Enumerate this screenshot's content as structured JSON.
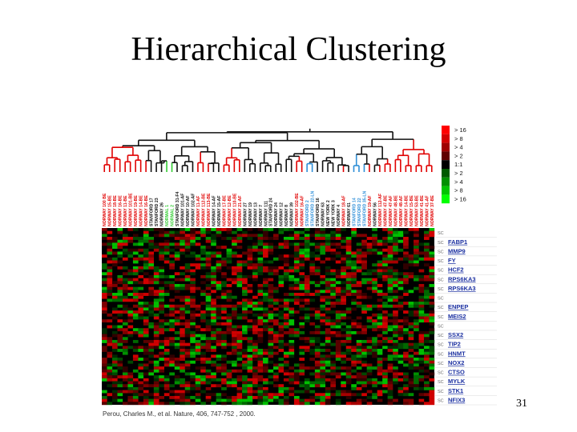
{
  "slide": {
    "title": "Hierarchical Clustering",
    "slide_number": "31",
    "citation": "Perou, Charles M., et al. Nature, 406, 747-752 , 2000."
  },
  "figure": {
    "samples": [
      {
        "label": "NORWAY 100 BE",
        "group": "red"
      },
      {
        "label": "NORWAY 15-BE",
        "group": "red"
      },
      {
        "label": "NORWAY 18-BE",
        "group": "red"
      },
      {
        "label": "NORWAY 16-BE",
        "group": "red"
      },
      {
        "label": "NORWAY 11-BE",
        "group": "red"
      },
      {
        "label": "NORWAY 101-BE",
        "group": "red"
      },
      {
        "label": "NORWAY 19-BE",
        "group": "red"
      },
      {
        "label": "NORWAY 14-BE",
        "group": "red"
      },
      {
        "label": "NORWAY 16-BE",
        "group": "red"
      },
      {
        "label": "STANFORD 17",
        "group": "black"
      },
      {
        "label": "STANFORD 23",
        "group": "black"
      },
      {
        "label": "NORWAY 26",
        "group": "black"
      },
      {
        "label": "NORMAL 1",
        "group": "green"
      },
      {
        "label": "NORMAL 2",
        "group": "green"
      },
      {
        "label": "STANFORD 31-F4",
        "group": "black"
      },
      {
        "label": "NORWAY 101-AF",
        "group": "black"
      },
      {
        "label": "NORWAY 10-AF",
        "group": "black"
      },
      {
        "label": "NORWAY 102-AF",
        "group": "black"
      },
      {
        "label": "NORWAY 11-AF",
        "group": "red"
      },
      {
        "label": "NORWAY 112-BE",
        "group": "red"
      },
      {
        "label": "NORWAY 113-BE",
        "group": "red"
      },
      {
        "label": "NORWAY 14-AF",
        "group": "black"
      },
      {
        "label": "NORWAY 15-AF",
        "group": "black"
      },
      {
        "label": "NORWAY 17-BE",
        "group": "red"
      },
      {
        "label": "NORWAY 12-BE",
        "group": "red"
      },
      {
        "label": "NORWAY 110-BE",
        "group": "red"
      },
      {
        "label": "NORWAY 21-AF",
        "group": "red"
      },
      {
        "label": "NORWAY 27",
        "group": "black"
      },
      {
        "label": "NORWAY 19",
        "group": "black"
      },
      {
        "label": "NORWAY 13",
        "group": "black"
      },
      {
        "label": "NORWAY 7",
        "group": "black"
      },
      {
        "label": "NORWAY 111",
        "group": "black"
      },
      {
        "label": "STANFORD 24",
        "group": "black"
      },
      {
        "label": "NORWAY 24",
        "group": "black"
      },
      {
        "label": "NORWAY 12",
        "group": "black"
      },
      {
        "label": "NORWAY 8",
        "group": "black"
      },
      {
        "label": "NORWAY 39",
        "group": "black"
      },
      {
        "label": "NORWAY 102-BE",
        "group": "red"
      },
      {
        "label": "NORWAY 16-AF",
        "group": "red"
      },
      {
        "label": "STANFORD 2",
        "group": "blue"
      },
      {
        "label": "STANFORD 22-LN",
        "group": "blue"
      },
      {
        "label": "STANFORD 16",
        "group": "black"
      },
      {
        "label": "NORWAY 63",
        "group": "black"
      },
      {
        "label": "NEW YORK 2",
        "group": "black"
      },
      {
        "label": "NEW YORK 3",
        "group": "black"
      },
      {
        "label": "NORWAY 4",
        "group": "black"
      },
      {
        "label": "NORWAY 18-AF",
        "group": "red"
      },
      {
        "label": "NORWAY 61",
        "group": "black"
      },
      {
        "label": "STANFORD 14",
        "group": "blue"
      },
      {
        "label": "STANFORD 22",
        "group": "blue"
      },
      {
        "label": "STANFORD 35-LN",
        "group": "blue"
      },
      {
        "label": "NORWAY 19-AF",
        "group": "red"
      },
      {
        "label": "NORWAY 56",
        "group": "black"
      },
      {
        "label": "NORWAY 112-AF",
        "group": "red"
      },
      {
        "label": "NORWAY 47-BE",
        "group": "red"
      },
      {
        "label": "NORWAY 47-AF",
        "group": "red"
      },
      {
        "label": "NORWAY 48-BE",
        "group": "red"
      },
      {
        "label": "NORWAY 48-AF",
        "group": "red"
      },
      {
        "label": "NORWAY 14-BE",
        "group": "red"
      },
      {
        "label": "NORWAY 15-BE",
        "group": "red"
      },
      {
        "label": "NORWAY 53-BE",
        "group": "red"
      },
      {
        "label": "NORWAY 41-BE",
        "group": "red"
      },
      {
        "label": "NORWAY 41-AF",
        "group": "red"
      },
      {
        "label": "NORWAY 37-BE",
        "group": "red"
      }
    ],
    "legend": [
      {
        "label": "> 16",
        "color": "#ff0000"
      },
      {
        "label": "> 8",
        "color": "#d40000"
      },
      {
        "label": "> 4",
        "color": "#a00000"
      },
      {
        "label": "> 2",
        "color": "#600000"
      },
      {
        "label": "1:1",
        "color": "#000000"
      },
      {
        "label": "> 2",
        "color": "#005a00"
      },
      {
        "label": "> 4",
        "color": "#009000"
      },
      {
        "label": "> 8",
        "color": "#00c400"
      },
      {
        "label": "> 16",
        "color": "#00ff00"
      }
    ],
    "genes": [
      {
        "tag": "SC",
        "name": ""
      },
      {
        "tag": "SC",
        "name": "FABP1"
      },
      {
        "tag": "SC",
        "name": "MMP9"
      },
      {
        "tag": "SC",
        "name": "FY"
      },
      {
        "tag": "SC",
        "name": "HCF2"
      },
      {
        "tag": "SC",
        "name": "RPS6KA3"
      },
      {
        "tag": "SC",
        "name": "RPS6KA3"
      },
      {
        "tag": "SC",
        "name": ""
      },
      {
        "tag": "SC",
        "name": "ENPEP"
      },
      {
        "tag": "SC",
        "name": "MEIS2"
      },
      {
        "tag": "SC",
        "name": ""
      },
      {
        "tag": "SC",
        "name": "SSX2"
      },
      {
        "tag": "SC",
        "name": "TIP2"
      },
      {
        "tag": "SC",
        "name": "HNMT"
      },
      {
        "tag": "SC",
        "name": "NOX2"
      },
      {
        "tag": "SC",
        "name": "CTSO"
      },
      {
        "tag": "SC",
        "name": "MYLK"
      },
      {
        "tag": "SC",
        "name": "STK1"
      },
      {
        "tag": "SC",
        "name": "NFIX3"
      }
    ],
    "colors": {
      "group_red": "#e00000",
      "group_black": "#111111",
      "group_green": "#33cc33",
      "group_blue": "#2f8fd8",
      "gene_link": "#1a2fa0"
    }
  }
}
